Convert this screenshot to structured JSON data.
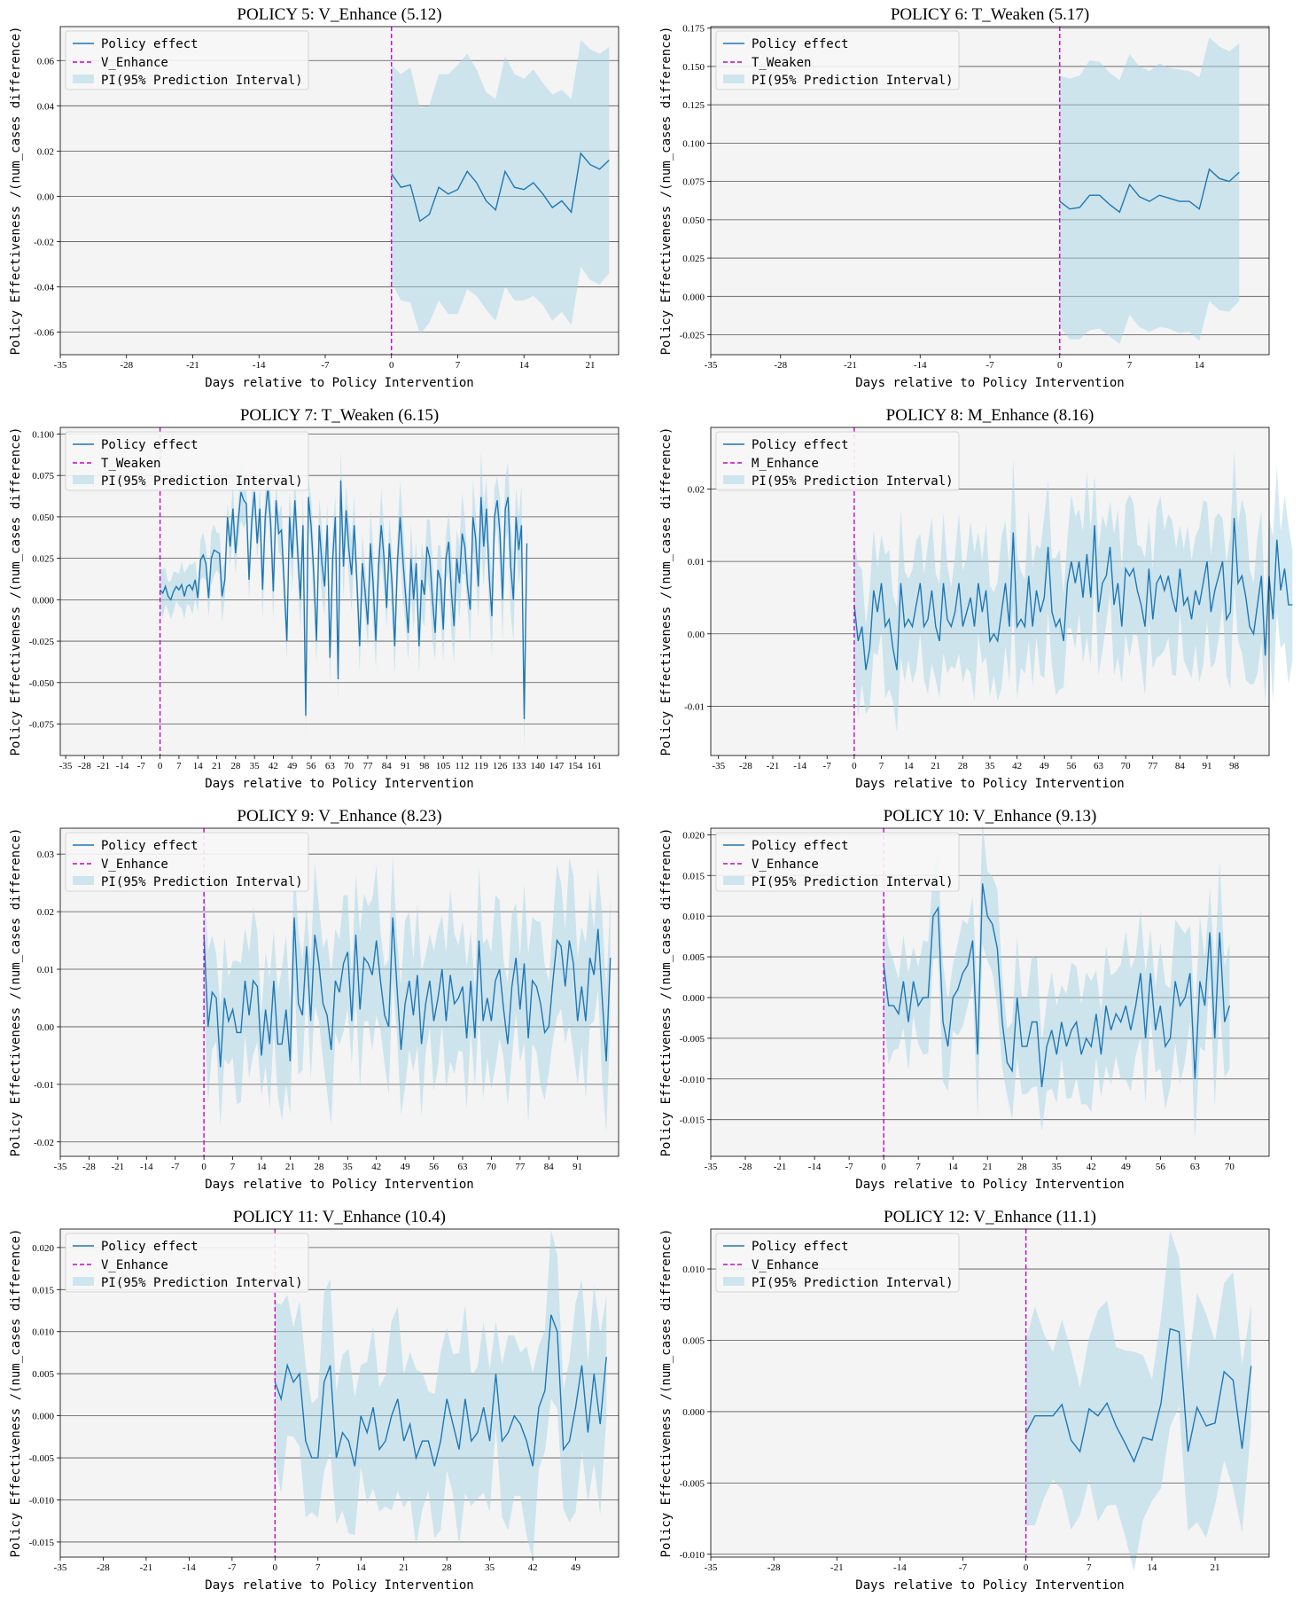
{
  "shared": {
    "xlabel": "Days relative to Policy Intervention",
    "ylabel": "Policy Effectiveness /(num_cases difference)",
    "legend": {
      "line": "Policy effect",
      "band": "PI(95% Prediction Interval)"
    },
    "colors": {
      "line": "#1f77b4",
      "band": "#a6d3e6",
      "intervention": "#cc00cc",
      "plot_bg": "#f4f4f4"
    }
  },
  "chart_data": [
    {
      "type": "line",
      "title": "POLICY 5: V_Enhance (5.12)",
      "policy_label": "V_Enhance",
      "xlim": [
        -35,
        24
      ],
      "ylim": [
        -0.07,
        0.075
      ],
      "xticks": [
        -35,
        -28,
        -21,
        -14,
        -7,
        0,
        7,
        14,
        21
      ],
      "yticks": [
        -0.06,
        -0.04,
        -0.02,
        0.0,
        0.02,
        0.04,
        0.06
      ],
      "ytick_labels": [
        "-0.06",
        "-0.04",
        "-0.02",
        "0.00",
        "0.02",
        "0.04",
        "0.06"
      ],
      "x_start": 0,
      "y": [
        0.01,
        0.004,
        0.005,
        -0.011,
        -0.008,
        0.004,
        0.001,
        0.003,
        0.011,
        0.006,
        -0.002,
        -0.006,
        0.011,
        0.004,
        0.003,
        0.006,
        0.001,
        -0.005,
        -0.002,
        -0.007,
        0.019,
        0.014,
        0.012,
        0.016
      ],
      "band_halfwidth": [
        0.048,
        0.05,
        0.052,
        0.05,
        0.048,
        0.05,
        0.053,
        0.055,
        0.052,
        0.05,
        0.048,
        0.049,
        0.051,
        0.05,
        0.049,
        0.05,
        0.049,
        0.05,
        0.049,
        0.05,
        0.05,
        0.051,
        0.051,
        0.05
      ]
    },
    {
      "type": "line",
      "title": "POLICY 6: T_Weaken (5.17)",
      "policy_label": "T_Weaken",
      "xlim": [
        -35,
        21
      ],
      "ylim": [
        -0.038,
        0.176
      ],
      "xticks": [
        -35,
        -28,
        -21,
        -14,
        -7,
        0,
        7,
        14
      ],
      "yticks": [
        -0.025,
        0.0,
        0.025,
        0.05,
        0.075,
        0.1,
        0.125,
        0.15,
        0.175
      ],
      "ytick_labels": [
        "-0.025",
        "0.000",
        "0.025",
        "0.050",
        "0.075",
        "0.100",
        "0.125",
        "0.150",
        "0.175"
      ],
      "x_start": 0,
      "y": [
        0.062,
        0.057,
        0.058,
        0.066,
        0.066,
        0.06,
        0.055,
        0.073,
        0.065,
        0.062,
        0.066,
        0.064,
        0.062,
        0.062,
        0.057,
        0.083,
        0.077,
        0.075,
        0.081
      ],
      "band_halfwidth": [
        0.082,
        0.085,
        0.086,
        0.088,
        0.087,
        0.086,
        0.086,
        0.085,
        0.085,
        0.085,
        0.086,
        0.085,
        0.086,
        0.085,
        0.086,
        0.086,
        0.086,
        0.085,
        0.084
      ]
    },
    {
      "type": "line",
      "title": "POLICY 7: T_Weaken (6.15)",
      "policy_label": "T_Weaken",
      "xlim": [
        -37,
        170
      ],
      "ylim": [
        -0.094,
        0.104
      ],
      "xticks": [
        -35,
        -28,
        -21,
        -14,
        -7,
        0,
        7,
        14,
        21,
        28,
        35,
        42,
        49,
        56,
        63,
        70,
        77,
        84,
        91,
        98,
        105,
        112,
        119,
        126,
        133,
        140,
        147,
        154,
        161
      ],
      "yticks": [
        -0.075,
        -0.05,
        -0.025,
        0.0,
        0.025,
        0.05,
        0.075,
        0.1
      ],
      "ytick_labels": [
        "-0.075",
        "-0.050",
        "-0.025",
        "0.000",
        "0.025",
        "0.050",
        "0.075",
        "0.100"
      ],
      "x_start": 0,
      "y": [
        0.006,
        0.004,
        0.008,
        0.002,
        0.0,
        0.005,
        0.008,
        0.006,
        0.009,
        0.002,
        0.008,
        0.009,
        0.006,
        0.012,
        0.001,
        0.024,
        0.027,
        0.022,
        0.001,
        0.025,
        0.03,
        0.029,
        0.028,
        0.002,
        0.012,
        0.05,
        0.032,
        0.055,
        0.028,
        0.048,
        0.065,
        0.06,
        0.058,
        0.012,
        0.048,
        0.065,
        0.034,
        0.055,
        0.006,
        0.05,
        0.068,
        0.046,
        0.005,
        0.06,
        0.04,
        0.042,
        0.01,
        -0.025,
        0.05,
        0.025,
        0.06,
        0.03,
        0.0,
        0.045,
        -0.07,
        0.062,
        0.045,
        0.015,
        -0.025,
        0.045,
        0.022,
        0.008,
        0.045,
        -0.035,
        0.025,
        0.05,
        -0.048,
        0.072,
        0.02,
        0.054,
        0.03,
        0.015,
        0.045,
        0.01,
        -0.028,
        0.022,
        0.005,
        -0.015,
        0.034,
        0.01,
        -0.025,
        0.02,
        0.045,
        0.026,
        -0.005,
        0.034,
        0.01,
        -0.028,
        0.022,
        0.05,
        0.025,
        0.003,
        -0.02,
        0.025,
        0.0,
        0.022,
        -0.028,
        0.012,
        0.003,
        0.032,
        0.025,
        0.0,
        -0.02,
        0.018,
        0.012,
        -0.018,
        0.025,
        0.035,
        0.005,
        -0.016,
        0.025,
        0.01,
        0.04,
        0.032,
        0.008,
        -0.006,
        0.05,
        0.037,
        0.008,
        0.062,
        0.032,
        0.055,
        0.015,
        -0.01,
        0.05,
        0.06,
        0.04,
        0.0,
        0.055,
        0.062,
        0.02,
        0.0,
        0.05,
        0.03,
        0.045,
        -0.072,
        0.034
      ],
      "band_halfwidth_start": 0.011,
      "band_halfwidth_end": 0.022
    },
    {
      "type": "line",
      "title": "POLICY 8: M_Enhance (8.16)",
      "policy_label": "M_Enhance",
      "xlim": [
        -37,
        107
      ],
      "ylim": [
        -0.0168,
        0.0285
      ],
      "xticks": [
        -35,
        -28,
        -21,
        -14,
        -7,
        0,
        7,
        14,
        21,
        28,
        35,
        42,
        49,
        56,
        63,
        70,
        77,
        84,
        91,
        98
      ],
      "yticks": [
        -0.01,
        0.0,
        0.01,
        0.02
      ],
      "ytick_labels": [
        "-0.01",
        "0.00",
        "0.01",
        "0.02"
      ],
      "x_start": 0,
      "y": [
        0.004,
        -0.001,
        0.001,
        -0.005,
        -0.002,
        0.006,
        0.003,
        0.007,
        0.001,
        0.002,
        -0.002,
        -0.005,
        0.007,
        0.001,
        0.002,
        0.001,
        0.004,
        0.007,
        0.001,
        0.002,
        0.006,
        0.001,
        -0.001,
        0.007,
        0.002,
        0.001,
        0.003,
        0.007,
        0.001,
        0.003,
        0.005,
        0.001,
        0.007,
        0.003,
        0.006,
        -0.001,
        0.0,
        -0.001,
        0.003,
        0.007,
        0.001,
        0.014,
        0.001,
        0.002,
        0.001,
        0.008,
        0.001,
        0.006,
        0.003,
        0.005,
        0.012,
        0.003,
        0.001,
        0.002,
        -0.001,
        0.007,
        0.01,
        0.007,
        0.01,
        0.005,
        0.011,
        0.005,
        0.015,
        0.003,
        0.007,
        0.008,
        0.012,
        0.004,
        0.007,
        0.001,
        0.009,
        0.008,
        0.009,
        0.006,
        0.004,
        0.001,
        0.009,
        0.002,
        0.007,
        0.008,
        0.006,
        0.008,
        0.005,
        0.003,
        0.009,
        0.004,
        0.005,
        0.002,
        0.006,
        0.004,
        0.007,
        0.01,
        0.003,
        0.006,
        0.008,
        0.01,
        0.002,
        0.003,
        0.016,
        0.007,
        0.008,
        0.005,
        0.001,
        0.0,
        0.004,
        0.008,
        -0.003,
        0.008,
        0.002,
        0.013,
        0.006,
        0.009,
        0.004,
        0.004
      ],
      "band_halfwidth_start": 0.008,
      "band_halfwidth_end": 0.009
    },
    {
      "type": "line",
      "title": "POLICY 9: V_Enhance (8.23)",
      "policy_label": "V_Enhance",
      "xlim": [
        -35,
        101
      ],
      "ylim": [
        -0.0225,
        0.0345
      ],
      "xticks": [
        -35,
        -28,
        -21,
        -14,
        -7,
        0,
        7,
        14,
        21,
        28,
        35,
        42,
        49,
        56,
        63,
        70,
        77,
        84,
        91
      ],
      "yticks": [
        -0.02,
        -0.01,
        0.0,
        0.01,
        0.02,
        0.03
      ],
      "ytick_labels": [
        "-0.02",
        "-0.01",
        "0.00",
        "0.01",
        "0.02",
        "0.03"
      ],
      "x_start": 0,
      "y": [
        0.016,
        0.0,
        0.006,
        0.005,
        -0.007,
        0.005,
        0.001,
        0.003,
        -0.001,
        -0.001,
        0.008,
        0.002,
        0.008,
        0.007,
        -0.005,
        0.003,
        -0.003,
        0.008,
        -0.003,
        -0.003,
        0.003,
        -0.006,
        0.019,
        0.004,
        0.002,
        0.014,
        0.001,
        0.016,
        0.011,
        0.004,
        0.002,
        -0.004,
        0.008,
        0.006,
        0.011,
        0.013,
        0.001,
        0.016,
        0.003,
        0.012,
        0.011,
        0.009,
        0.015,
        0.008,
        0.002,
        0.0,
        0.019,
        0.007,
        -0.004,
        0.004,
        0.008,
        0.002,
        0.009,
        -0.003,
        0.004,
        0.008,
        0.001,
        0.005,
        0.01,
        0.001,
        0.009,
        0.004,
        0.005,
        0.007,
        -0.002,
        0.008,
        -0.002,
        0.015,
        0.001,
        0.005,
        0.001,
        0.008,
        0.01,
        0.003,
        -0.003,
        0.007,
        0.012,
        0.003,
        0.011,
        -0.002,
        0.008,
        0.007,
        0.004,
        -0.001,
        0.0,
        0.008,
        0.015,
        0.014,
        0.007,
        0.015,
        0.011,
        0.001,
        0.007,
        0.001,
        0.012,
        0.009,
        0.017,
        0.005,
        -0.006,
        0.012
      ],
      "band_halfwidth_start": 0.01,
      "band_halfwidth_end": 0.012
    },
    {
      "type": "line",
      "title": "POLICY 10: V_Enhance (9.13)",
      "policy_label": "V_Enhance",
      "xlim": [
        -35,
        78
      ],
      "ylim": [
        -0.0195,
        0.0208
      ],
      "xticks": [
        -35,
        -28,
        -21,
        -14,
        -7,
        0,
        7,
        14,
        21,
        28,
        35,
        42,
        49,
        56,
        63,
        70
      ],
      "yticks": [
        -0.015,
        -0.01,
        -0.005,
        0.0,
        0.005,
        0.01,
        0.015,
        0.02
      ],
      "ytick_labels": [
        "-0.015",
        "-0.010",
        "-0.005",
        "0.000",
        "0.005",
        "0.010",
        "0.015",
        "0.020"
      ],
      "x_start": 0,
      "y": [
        0.004,
        -0.001,
        -0.001,
        -0.002,
        0.002,
        -0.003,
        0.002,
        -0.001,
        0.0,
        0.0,
        0.01,
        0.011,
        -0.003,
        -0.006,
        0.0,
        0.001,
        0.003,
        0.004,
        0.007,
        -0.007,
        0.014,
        0.01,
        0.009,
        0.006,
        -0.003,
        -0.008,
        -0.009,
        0.0,
        -0.006,
        -0.006,
        -0.003,
        -0.003,
        -0.011,
        -0.006,
        -0.004,
        -0.007,
        -0.003,
        -0.006,
        -0.004,
        -0.003,
        -0.007,
        -0.005,
        -0.006,
        -0.002,
        -0.007,
        -0.001,
        -0.004,
        -0.002,
        -0.003,
        -0.001,
        -0.004,
        -0.001,
        0.003,
        -0.005,
        0.003,
        -0.004,
        -0.001,
        -0.006,
        -0.005,
        0.002,
        -0.001,
        0.0,
        0.003,
        -0.01,
        0.002,
        -0.001,
        0.008,
        -0.005,
        0.008,
        -0.003,
        -0.001
      ],
      "band_halfwidth_start": 0.0055,
      "band_halfwidth_end": 0.0075
    },
    {
      "type": "line",
      "title": "POLICY 11: V_Enhance (10.4)",
      "policy_label": "V_Enhance",
      "xlim": [
        -35,
        56
      ],
      "ylim": [
        -0.0168,
        0.0222
      ],
      "xticks": [
        -35,
        -28,
        -21,
        -14,
        -7,
        0,
        7,
        14,
        21,
        28,
        35,
        42,
        49
      ],
      "yticks": [
        -0.015,
        -0.01,
        -0.005,
        0.0,
        0.005,
        0.01,
        0.015,
        0.02
      ],
      "ytick_labels": [
        "-0.015",
        "-0.010",
        "-0.005",
        "0.000",
        "0.005",
        "0.010",
        "0.015",
        "0.020"
      ],
      "x_start": 0,
      "y": [
        0.004,
        0.002,
        0.006,
        0.004,
        0.005,
        -0.003,
        -0.005,
        -0.005,
        0.004,
        0.006,
        -0.005,
        -0.002,
        -0.003,
        -0.006,
        0.0,
        -0.002,
        0.001,
        -0.004,
        -0.003,
        0.0,
        0.002,
        -0.003,
        -0.001,
        -0.005,
        -0.003,
        -0.003,
        -0.006,
        -0.003,
        0.002,
        -0.001,
        -0.004,
        0.002,
        -0.003,
        -0.002,
        0.001,
        -0.003,
        0.005,
        -0.003,
        -0.002,
        0.0,
        -0.001,
        -0.003,
        -0.006,
        0.001,
        0.003,
        0.012,
        0.01,
        -0.004,
        -0.003,
        0.001,
        0.006,
        -0.002,
        0.005,
        -0.001,
        0.007
      ],
      "band_halfwidth_start": 0.0085,
      "band_halfwidth_end": 0.0095
    },
    {
      "type": "line",
      "title": "POLICY 12: V_Enhance (11.1)",
      "policy_label": "V_Enhance",
      "xlim": [
        -35,
        27
      ],
      "ylim": [
        -0.0102,
        0.0128
      ],
      "xticks": [
        -35,
        -28,
        -21,
        -14,
        -7,
        0,
        7,
        14,
        21
      ],
      "yticks": [
        -0.01,
        -0.005,
        0.0,
        0.005,
        0.01
      ],
      "ytick_labels": [
        "-0.010",
        "-0.005",
        "0.000",
        "0.005",
        "0.010"
      ],
      "x_start": 0,
      "y": [
        -0.0015,
        -0.0003,
        -0.0003,
        -0.0003,
        0.0005,
        -0.002,
        -0.0028,
        0.0002,
        -0.0003,
        0.0006,
        -0.001,
        -0.0022,
        -0.0035,
        -0.0018,
        -0.002,
        0.0006,
        0.0058,
        0.0056,
        -0.0028,
        0.0003,
        -0.001,
        -0.0008,
        0.0028,
        0.0022,
        -0.0026,
        0.0032
      ],
      "band_halfwidth_start": 0.0058,
      "band_halfwidth_end": 0.0065
    }
  ]
}
